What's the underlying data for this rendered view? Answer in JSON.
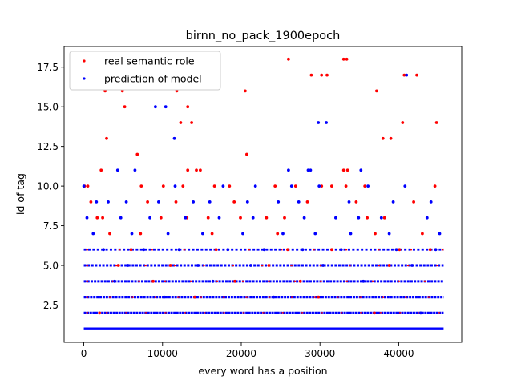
{
  "chart_data": {
    "type": "scatter",
    "title": "birnn_no_pack_1900epoch",
    "xlabel": "every word has a position",
    "ylabel": "id of tag",
    "xlim": [
      -2500,
      48000
    ],
    "ylim": [
      0.15,
      18.8
    ],
    "x_ticks": [
      0,
      10000,
      20000,
      30000,
      40000
    ],
    "x_tick_labels": [
      "0",
      "10000",
      "20000",
      "30000",
      "40000"
    ],
    "y_ticks": [
      2.5,
      5.0,
      7.5,
      10.0,
      12.5,
      15.0,
      17.5
    ],
    "y_tick_labels": [
      "2.5",
      "5.0",
      "7.5",
      "10.0",
      "12.5",
      "15.0",
      "17.5"
    ],
    "legend_position": "upper-left",
    "series": [
      {
        "name": "real semantic role",
        "color": "#ff0000",
        "points": [
          [
            2700,
            16
          ],
          [
            4900,
            16
          ],
          [
            5200,
            15
          ],
          [
            11800,
            16
          ],
          [
            12300,
            14
          ],
          [
            13200,
            15
          ],
          [
            13700,
            14
          ],
          [
            20500,
            16
          ],
          [
            20700,
            12
          ],
          [
            26000,
            18
          ],
          [
            28900,
            17
          ],
          [
            30200,
            17
          ],
          [
            30900,
            17
          ],
          [
            33000,
            18
          ],
          [
            33400,
            18
          ],
          [
            37200,
            16
          ],
          [
            38000,
            13
          ],
          [
            39000,
            13
          ],
          [
            40500,
            14
          ],
          [
            40700,
            17
          ],
          [
            42300,
            17
          ],
          [
            44800,
            14
          ],
          [
            2900,
            13
          ],
          [
            6800,
            12
          ],
          [
            2200,
            11
          ],
          [
            13200,
            11
          ],
          [
            14300,
            11
          ],
          [
            14800,
            11
          ],
          [
            33000,
            11
          ],
          [
            33500,
            11
          ],
          [
            100,
            10
          ],
          [
            500,
            10
          ],
          [
            7300,
            10
          ],
          [
            10100,
            10
          ],
          [
            12600,
            10
          ],
          [
            16600,
            10
          ],
          [
            18500,
            10
          ],
          [
            24300,
            10
          ],
          [
            26900,
            10
          ],
          [
            30200,
            10
          ],
          [
            31500,
            10
          ],
          [
            33300,
            10
          ],
          [
            35700,
            10
          ],
          [
            44600,
            10
          ],
          [
            1700,
            8
          ],
          [
            2400,
            8
          ],
          [
            9800,
            8
          ],
          [
            13100,
            8
          ],
          [
            15800,
            8
          ],
          [
            19900,
            8
          ],
          [
            23200,
            8
          ],
          [
            25500,
            8
          ],
          [
            36000,
            8
          ],
          [
            38200,
            8
          ],
          [
            900,
            9
          ],
          [
            8100,
            9
          ],
          [
            11700,
            9
          ],
          [
            19100,
            9
          ],
          [
            28400,
            9
          ],
          [
            34600,
            9
          ],
          [
            41900,
            9
          ],
          [
            3300,
            7
          ],
          [
            7200,
            7
          ],
          [
            16300,
            7
          ],
          [
            24600,
            7
          ],
          [
            37000,
            7
          ],
          [
            43000,
            7
          ],
          [
            6000,
            6
          ],
          [
            16800,
            6
          ],
          [
            25900,
            6
          ],
          [
            31500,
            6
          ],
          [
            40100,
            6
          ],
          [
            44000,
            6
          ],
          [
            4400,
            5
          ],
          [
            11000,
            5
          ],
          [
            23500,
            5
          ],
          [
            38800,
            5
          ],
          [
            8800,
            4
          ],
          [
            19200,
            4
          ],
          [
            27500,
            4
          ],
          [
            29800,
            3
          ],
          [
            14100,
            3
          ],
          [
            2000,
            2
          ],
          [
            36900,
            2
          ]
        ]
      },
      {
        "name": "prediction of model",
        "color": "#0000ff",
        "points": [
          [
            9100,
            15
          ],
          [
            10400,
            15
          ],
          [
            11500,
            13
          ],
          [
            29800,
            14
          ],
          [
            30800,
            14
          ],
          [
            41000,
            17
          ],
          [
            4300,
            11
          ],
          [
            6500,
            11
          ],
          [
            26000,
            11
          ],
          [
            28500,
            11
          ],
          [
            28800,
            11
          ],
          [
            35200,
            11
          ],
          [
            0,
            10
          ],
          [
            11600,
            10
          ],
          [
            17700,
            10
          ],
          [
            21800,
            10
          ],
          [
            26400,
            10
          ],
          [
            29900,
            10
          ],
          [
            36100,
            10
          ],
          [
            40800,
            10
          ],
          [
            1600,
            9
          ],
          [
            3100,
            9
          ],
          [
            5400,
            9
          ],
          [
            9500,
            9
          ],
          [
            13900,
            9
          ],
          [
            16000,
            9
          ],
          [
            20800,
            9
          ],
          [
            24700,
            9
          ],
          [
            27300,
            9
          ],
          [
            33700,
            9
          ],
          [
            39300,
            9
          ],
          [
            44100,
            9
          ],
          [
            400,
            8
          ],
          [
            4700,
            8
          ],
          [
            8400,
            8
          ],
          [
            12900,
            8
          ],
          [
            17200,
            8
          ],
          [
            21500,
            8
          ],
          [
            28000,
            8
          ],
          [
            32000,
            8
          ],
          [
            34900,
            8
          ],
          [
            37800,
            8
          ],
          [
            43600,
            8
          ],
          [
            1200,
            7
          ],
          [
            6100,
            7
          ],
          [
            10700,
            7
          ],
          [
            15100,
            7
          ],
          [
            20200,
            7
          ],
          [
            25300,
            7
          ],
          [
            29400,
            7
          ],
          [
            33900,
            7
          ],
          [
            38800,
            7
          ],
          [
            45200,
            7
          ],
          [
            2500,
            6
          ],
          [
            7600,
            6
          ],
          [
            12100,
            6
          ],
          [
            18300,
            6
          ],
          [
            22900,
            6
          ],
          [
            27800,
            6
          ],
          [
            32700,
            6
          ],
          [
            39700,
            6
          ],
          [
            44700,
            6
          ],
          [
            5600,
            5
          ],
          [
            14500,
            5
          ],
          [
            21200,
            5
          ],
          [
            30400,
            5
          ],
          [
            41700,
            5
          ],
          [
            3900,
            4
          ],
          [
            16400,
            4
          ],
          [
            35500,
            4
          ],
          [
            10200,
            3
          ],
          [
            24100,
            3
          ],
          [
            42800,
            2
          ]
        ]
      }
    ]
  }
}
